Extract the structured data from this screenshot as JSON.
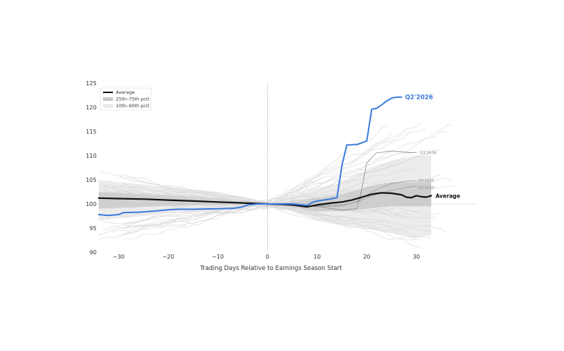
{
  "chart_data": {
    "type": "line",
    "title": "",
    "xlabel": "Trading Days Relative to Earnings Season Start",
    "ylabel": "",
    "xlim": [
      -34,
      42
    ],
    "ylim": [
      90,
      125
    ],
    "xticks": [
      -30,
      -20,
      -10,
      0,
      10,
      20,
      30
    ],
    "yticks": [
      90,
      95,
      100,
      105,
      110,
      115,
      120,
      125
    ],
    "xtick_labels": [
      "−30",
      "−20",
      "−10",
      "0",
      "10",
      "20",
      "30"
    ],
    "ytick_labels": [
      "90",
      "95",
      "100",
      "105",
      "110",
      "115",
      "120",
      "125"
    ],
    "grid": false,
    "vertical_reference_x": 0,
    "horizontal_reference_y": 100,
    "legend": {
      "position": "upper-left",
      "entries": [
        {
          "label": "Average",
          "style": "line",
          "color": "#111111"
        },
        {
          "label": "25th–75th pctl",
          "style": "band",
          "color": "#c9c9c9"
        },
        {
          "label": "10th–90th pctl",
          "style": "band",
          "color": "#e9e9e9"
        }
      ]
    },
    "bands": [
      {
        "name": "10th–90th pctl",
        "color": "#e9e9e9",
        "x": [
          -34,
          -30,
          -25,
          -20,
          -15,
          -10,
          -5,
          0,
          5,
          10,
          15,
          20,
          25,
          30,
          33
        ],
        "upper": [
          105.0,
          104.5,
          104.0,
          103.5,
          103.0,
          102.5,
          101.5,
          100,
          101.5,
          103.0,
          104.5,
          107.0,
          109.0,
          110.0,
          110.0
        ],
        "lower": [
          96.5,
          97.0,
          97.5,
          98.0,
          98.2,
          98.5,
          99.0,
          100,
          98.5,
          96.5,
          95.5,
          95.0,
          94.0,
          93.0,
          93.5
        ]
      },
      {
        "name": "25th–75th pctl",
        "color": "#c9c9c9",
        "x": [
          -34,
          -30,
          -25,
          -20,
          -15,
          -10,
          -5,
          0,
          5,
          10,
          15,
          20,
          25,
          30,
          33
        ],
        "upper": [
          102.5,
          102.3,
          102.0,
          101.7,
          101.4,
          101.0,
          100.6,
          100,
          100.5,
          101.2,
          102.0,
          103.5,
          104.5,
          104.5,
          104.5
        ],
        "lower": [
          99.0,
          99.2,
          99.4,
          99.6,
          99.7,
          99.8,
          99.9,
          100,
          99.2,
          98.5,
          98.5,
          99.0,
          99.5,
          99.5,
          99.5
        ]
      }
    ],
    "series": [
      {
        "name": "Average",
        "color": "#111111",
        "x": [
          -34,
          -30,
          -25,
          -20,
          -15,
          -10,
          -5,
          0,
          3,
          5,
          8,
          10,
          13,
          15,
          17,
          19,
          21,
          23,
          25,
          27,
          28,
          29,
          30,
          31,
          32,
          33
        ],
        "y": [
          101.2,
          101.1,
          101.0,
          100.8,
          100.6,
          100.4,
          100.2,
          100.0,
          99.9,
          99.8,
          99.4,
          99.8,
          100.2,
          100.4,
          100.8,
          101.4,
          102.0,
          102.3,
          102.2,
          101.9,
          101.4,
          101.3,
          101.7,
          101.5,
          101.4,
          101.7
        ]
      },
      {
        "name": "Q2'2026",
        "color": "#3a7bdc",
        "x": [
          -34,
          -32,
          -30,
          -29,
          -26,
          -23,
          -20,
          -18,
          -15,
          -10,
          -7,
          -6,
          -5,
          -4,
          -3,
          -2,
          0,
          5,
          8,
          9,
          10,
          12,
          14,
          15,
          16,
          18,
          20,
          21,
          22,
          23,
          24,
          25,
          26,
          27
        ],
        "y": [
          97.8,
          97.6,
          97.8,
          98.2,
          98.3,
          98.5,
          98.8,
          98.9,
          98.9,
          99.0,
          99.1,
          99.2,
          99.4,
          99.8,
          99.9,
          100.0,
          100.0,
          100.0,
          99.7,
          100.3,
          100.6,
          100.9,
          101.3,
          108.0,
          112.2,
          112.3,
          113.0,
          119.6,
          119.8,
          120.5,
          121.3,
          121.9,
          122.1,
          122.1
        ]
      },
      {
        "name": "Q1'2026",
        "color": "#888888",
        "x": [
          0,
          5,
          10,
          15,
          18,
          19,
          20,
          22,
          25,
          28,
          30
        ],
        "y": [
          100.0,
          99.7,
          99.5,
          98.7,
          99.0,
          103.0,
          108.5,
          110.6,
          110.9,
          110.7,
          110.6
        ]
      },
      {
        "name": "Q4'2025",
        "color": "#9a9a9a",
        "x": [
          0,
          5,
          10,
          15,
          18,
          20,
          22,
          25,
          28,
          30
        ],
        "y": [
          100.0,
          99.8,
          99.4,
          99.6,
          100.5,
          101.8,
          103.0,
          104.2,
          104.7,
          104.8
        ]
      },
      {
        "name": "Q3'2025",
        "color": "#9a9a9a",
        "x": [
          0,
          5,
          10,
          15,
          18,
          20,
          22,
          25,
          28,
          30
        ],
        "y": [
          100.0,
          99.9,
          99.6,
          99.8,
          100.4,
          101.2,
          102.0,
          102.8,
          103.4,
          103.7
        ]
      }
    ],
    "end_labels": [
      {
        "text": "Q2'2026",
        "series": "Q2'2026"
      },
      {
        "text": "Q1'2026",
        "series": "Q1'2026"
      },
      {
        "text": "Q4'2025",
        "series": "Q4'2025"
      },
      {
        "text": "Q3'2025",
        "series": "Q3'2025"
      },
      {
        "text": "Average",
        "series": "Average"
      }
    ]
  }
}
